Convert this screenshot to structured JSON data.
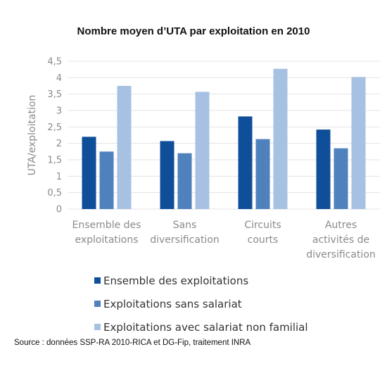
{
  "chart_data": {
    "type": "bar",
    "title": "Nombre moyen d’UTA par exploitation en 2010",
    "xlabel": "",
    "ylabel": "UTA/exploitation",
    "ylim": [
      0,
      4.5
    ],
    "yticks": [
      "0",
      "0,5",
      "1",
      "1,5",
      "2",
      "2,5",
      "3",
      "3,5",
      "4",
      "4,5"
    ],
    "categories": [
      [
        "Ensemble des",
        "exploitations"
      ],
      [
        "Sans",
        "diversification"
      ],
      [
        "Circuits",
        "courts"
      ],
      [
        "Autres",
        "activités de",
        "diversification"
      ]
    ],
    "series": [
      {
        "name": "Ensemble des exploitations",
        "color": "#0f4f9a",
        "values": [
          2.2,
          2.07,
          2.82,
          2.42
        ]
      },
      {
        "name": "Exploitations sans salariat",
        "color": "#4f81bd",
        "values": [
          1.75,
          1.7,
          2.13,
          1.85
        ]
      },
      {
        "name": "Exploitations avec salariat non familial",
        "color": "#a6c1e1",
        "values": [
          3.75,
          3.57,
          4.27,
          4.02
        ]
      }
    ],
    "grid": true,
    "legend_position": "bottom"
  },
  "source_note": "Source : données SSP-RA 2010-RICA et DG-Fip, traitement INRA"
}
